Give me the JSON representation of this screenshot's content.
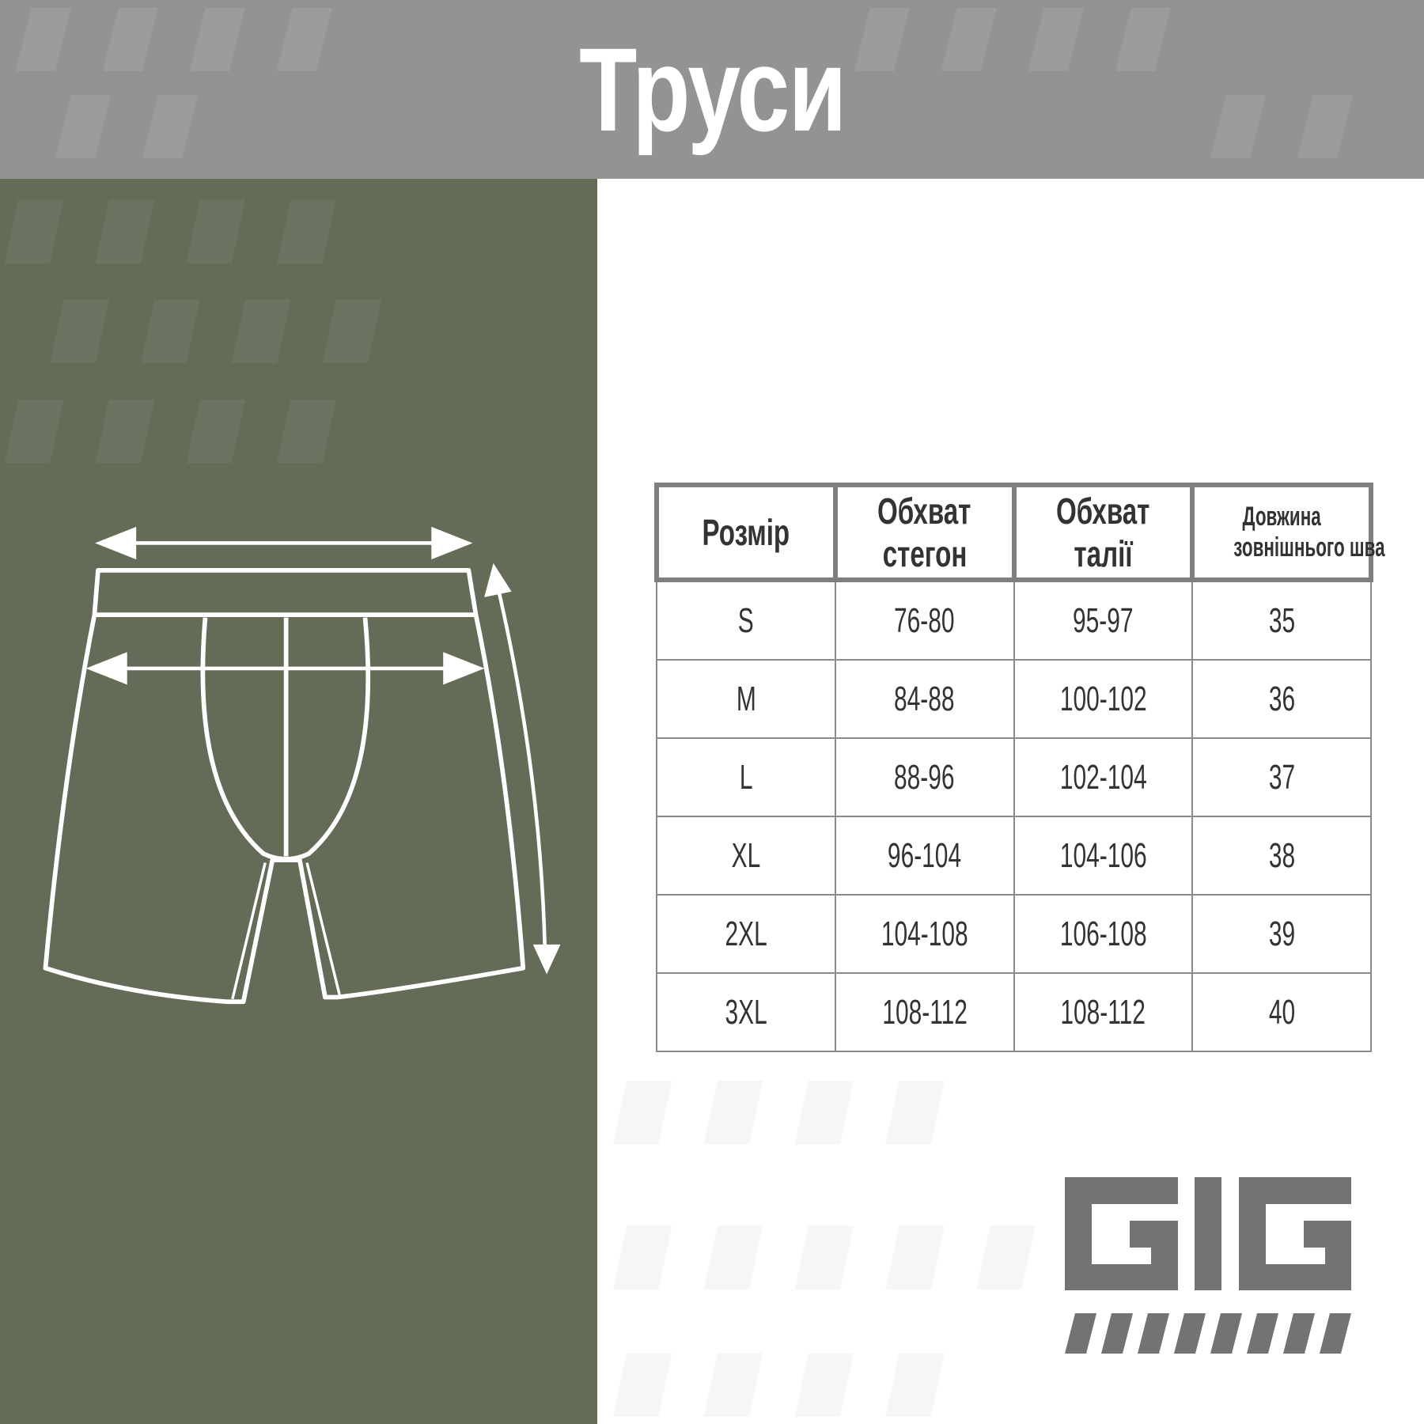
{
  "header": {
    "title": "Труси"
  },
  "colors": {
    "header_bg": "#939393",
    "panel_green": "#646b56",
    "logo_gray": "#737373",
    "text": "#333333"
  },
  "diagram": {
    "icons": [
      "shorts-outline",
      "hip-width-arrow",
      "waist-width-arrow",
      "outer-seam-length-arrow"
    ]
  },
  "table": {
    "headers": [
      {
        "line1": "Розмір",
        "line2": ""
      },
      {
        "line1": "Обхват",
        "line2": "стегон"
      },
      {
        "line1": "Обхват",
        "line2": "талії"
      },
      {
        "line1": "Довжина",
        "line2": "зовнішнього шва"
      }
    ],
    "rows": [
      [
        "S",
        "76-80",
        "95-97",
        "35"
      ],
      [
        "M",
        "84-88",
        "100-102",
        "36"
      ],
      [
        "L",
        "88-96",
        "102-104",
        "37"
      ],
      [
        "XL",
        "96-104",
        "104-106",
        "38"
      ],
      [
        "2XL",
        "104-108",
        "106-108",
        "39"
      ],
      [
        "3XL",
        "108-112",
        "108-112",
        "40"
      ]
    ]
  },
  "logo": {
    "text": "GIG"
  }
}
